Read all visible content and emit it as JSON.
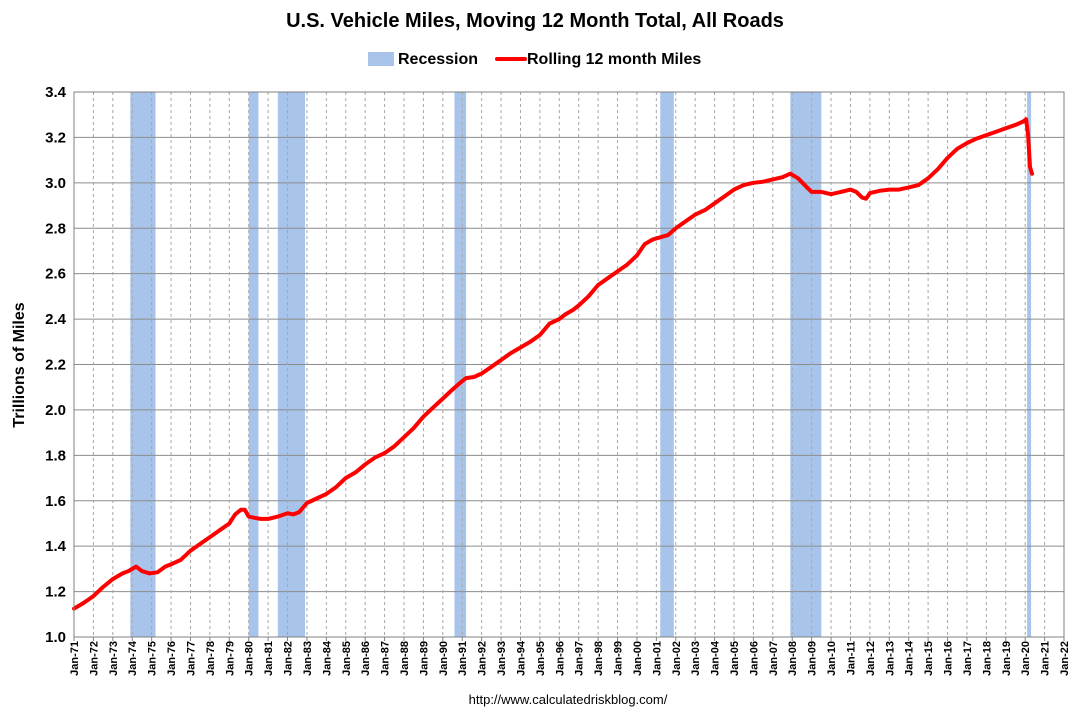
{
  "chart_data": {
    "type": "line",
    "title": "U.S. Vehicle Miles, Moving 12 Month Total, All Roads",
    "ylabel": "Trillions of Miles",
    "xlabel": "",
    "source": "http://www.calculatedriskblog.com/",
    "ylim": [
      1.0,
      3.4
    ],
    "xlim": [
      1971.0,
      2022.0
    ],
    "yticks": [
      "1.0",
      "1.2",
      "1.4",
      "1.6",
      "1.8",
      "2.0",
      "2.2",
      "2.4",
      "2.6",
      "2.8",
      "3.0",
      "3.2",
      "3.4"
    ],
    "xticks": [
      "Jan-71",
      "Jan-72",
      "Jan-73",
      "Jan-74",
      "Jan-75",
      "Jan-76",
      "Jan-77",
      "Jan-78",
      "Jan-79",
      "Jan-80",
      "Jan-81",
      "Jan-82",
      "Jan-83",
      "Jan-84",
      "Jan-85",
      "Jan-86",
      "Jan-87",
      "Jan-88",
      "Jan-89",
      "Jan-90",
      "Jan-91",
      "Jan-92",
      "Jan-93",
      "Jan-94",
      "Jan-95",
      "Jan-96",
      "Jan-97",
      "Jan-98",
      "Jan-99",
      "Jan-00",
      "Jan-01",
      "Jan-02",
      "Jan-03",
      "Jan-04",
      "Jan-05",
      "Jan-06",
      "Jan-07",
      "Jan-08",
      "Jan-09",
      "Jan-10",
      "Jan-11",
      "Jan-12",
      "Jan-13",
      "Jan-14",
      "Jan-15",
      "Jan-16",
      "Jan-17",
      "Jan-18",
      "Jan-19",
      "Jan-20",
      "Jan-21",
      "Jan-22"
    ],
    "grid": true,
    "legend": {
      "position": "top",
      "entries": [
        {
          "label": "Recession",
          "color": "#a9c4eb",
          "kind": "box"
        },
        {
          "label": "Rolling 12 month Miles",
          "color": "#ff0000",
          "kind": "line"
        }
      ]
    },
    "recessions": [
      [
        1973.9,
        1975.2
      ],
      [
        1980.0,
        1980.5
      ],
      [
        1981.5,
        1982.9
      ],
      [
        1990.6,
        1991.2
      ],
      [
        2001.2,
        2001.9
      ],
      [
        2007.9,
        2009.5
      ],
      [
        2020.1,
        2020.3
      ]
    ],
    "series": [
      {
        "name": "Rolling 12 month Miles",
        "color": "#ff0000",
        "x": [
          1971.0,
          1971.5,
          1972.0,
          1972.5,
          1973.0,
          1973.5,
          1973.8,
          1974.0,
          1974.2,
          1974.5,
          1974.9,
          1975.3,
          1975.7,
          1976.0,
          1976.5,
          1977.0,
          1977.5,
          1978.0,
          1978.5,
          1979.0,
          1979.3,
          1979.6,
          1979.8,
          1980.0,
          1980.3,
          1980.6,
          1981.0,
          1981.5,
          1982.0,
          1982.3,
          1982.6,
          1983.0,
          1983.5,
          1984.0,
          1984.5,
          1985.0,
          1985.5,
          1986.0,
          1986.5,
          1987.0,
          1987.5,
          1988.0,
          1988.5,
          1989.0,
          1989.5,
          1990.0,
          1990.5,
          1990.9,
          1991.2,
          1991.6,
          1992.0,
          1992.5,
          1993.0,
          1993.5,
          1994.0,
          1994.5,
          1995.0,
          1995.5,
          1996.0,
          1996.3,
          1996.7,
          1997.0,
          1997.5,
          1998.0,
          1998.5,
          1999.0,
          1999.5,
          2000.0,
          2000.4,
          2000.8,
          2001.2,
          2001.6,
          2002.0,
          2002.5,
          2003.0,
          2003.5,
          2004.0,
          2004.5,
          2005.0,
          2005.5,
          2006.0,
          2006.5,
          2007.0,
          2007.5,
          2007.9,
          2008.3,
          2008.7,
          2009.0,
          2009.5,
          2010.0,
          2010.5,
          2011.0,
          2011.3,
          2011.6,
          2011.8,
          2012.0,
          2012.5,
          2013.0,
          2013.5,
          2014.0,
          2014.5,
          2015.0,
          2015.5,
          2016.0,
          2016.5,
          2017.0,
          2017.5,
          2018.0,
          2018.5,
          2019.0,
          2019.5,
          2019.9,
          2020.05,
          2020.15,
          2020.25,
          2020.35
        ],
        "values": [
          1.125,
          1.15,
          1.18,
          1.22,
          1.255,
          1.28,
          1.29,
          1.3,
          1.31,
          1.29,
          1.28,
          1.285,
          1.31,
          1.32,
          1.34,
          1.38,
          1.41,
          1.44,
          1.47,
          1.5,
          1.54,
          1.56,
          1.56,
          1.53,
          1.525,
          1.52,
          1.52,
          1.53,
          1.545,
          1.54,
          1.55,
          1.59,
          1.61,
          1.63,
          1.66,
          1.7,
          1.725,
          1.76,
          1.79,
          1.81,
          1.84,
          1.88,
          1.92,
          1.97,
          2.01,
          2.05,
          2.09,
          2.12,
          2.14,
          2.145,
          2.16,
          2.19,
          2.22,
          2.25,
          2.275,
          2.3,
          2.33,
          2.38,
          2.4,
          2.42,
          2.44,
          2.46,
          2.5,
          2.55,
          2.58,
          2.61,
          2.64,
          2.68,
          2.73,
          2.75,
          2.76,
          2.77,
          2.8,
          2.83,
          2.86,
          2.88,
          2.91,
          2.94,
          2.97,
          2.99,
          3.0,
          3.005,
          3.015,
          3.025,
          3.04,
          3.02,
          2.985,
          2.96,
          2.96,
          2.95,
          2.96,
          2.97,
          2.96,
          2.935,
          2.93,
          2.955,
          2.965,
          2.97,
          2.97,
          2.98,
          2.99,
          3.02,
          3.06,
          3.11,
          3.15,
          3.175,
          3.195,
          3.21,
          3.225,
          3.24,
          3.255,
          3.27,
          3.28,
          3.21,
          3.07,
          3.04
        ]
      }
    ]
  }
}
